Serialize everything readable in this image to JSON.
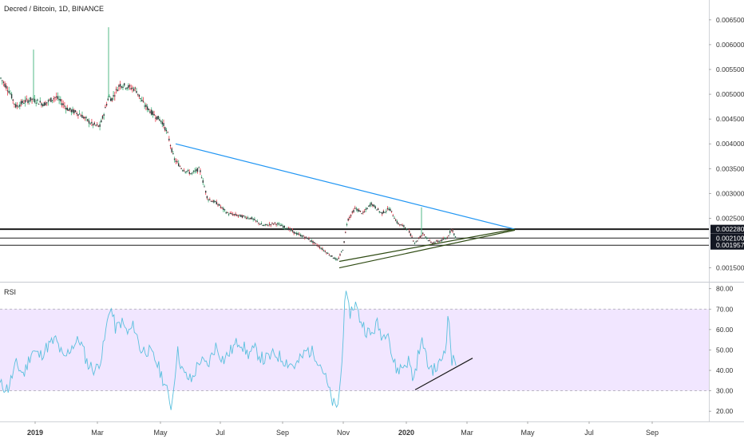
{
  "header": {
    "title": "Decred / Bitcoin, 1D, BINANCE"
  },
  "rsi_panel": {
    "label": "RSI"
  },
  "colors": {
    "candle_up": "#53b987",
    "candle_down": "#eb4d5c",
    "candle_body": "#2e3a3a",
    "trend_blue": "#2196f3",
    "trend_green": "#2e4a12",
    "rsi_line": "#5bc0de",
    "rsi_band": "#f1e6ff",
    "level_line": "#1b1b1b"
  },
  "chart_data": [
    {
      "type": "candlestick",
      "title": "Decred / Bitcoin, 1D, BINANCE",
      "x_ticks": [
        "2019",
        "Mar",
        "May",
        "Jul",
        "Sep",
        "Nov",
        "2020",
        "Mar",
        "May",
        "Jul",
        "Sep"
      ],
      "y_ticks": [
        "0.006500",
        "0.006000",
        "0.005500",
        "0.005000",
        "0.004500",
        "0.004000",
        "0.003500",
        "0.003000",
        "0.002500",
        "0.001500"
      ],
      "ylim": [
        0.00122,
        0.0069
      ],
      "price_levels": [
        {
          "value": 0.00228,
          "label": "0.002280"
        },
        {
          "value": 0.0021,
          "label": "0.002100"
        },
        {
          "value": 0.001957,
          "label": "0.001957"
        }
      ],
      "series_path": [
        [
          0,
          0.00535
        ],
        [
          12,
          0.00505
        ],
        [
          20,
          0.00475
        ],
        [
          30,
          0.00485
        ],
        [
          40,
          0.0049
        ],
        [
          55,
          0.0048
        ],
        [
          70,
          0.00495
        ],
        [
          85,
          0.0047
        ],
        [
          100,
          0.0046
        ],
        [
          115,
          0.0044
        ],
        [
          125,
          0.00435
        ],
        [
          130,
          0.0046
        ],
        [
          136,
          0.00495
        ],
        [
          140,
          0.0049
        ],
        [
          150,
          0.0052
        ],
        [
          160,
          0.00515
        ],
        [
          170,
          0.0051
        ],
        [
          180,
          0.0048
        ],
        [
          192,
          0.0046
        ],
        [
          203,
          0.00445
        ],
        [
          210,
          0.0042
        ],
        [
          218,
          0.0037
        ],
        [
          228,
          0.0035
        ],
        [
          240,
          0.0034
        ],
        [
          250,
          0.0035
        ],
        [
          260,
          0.0029
        ],
        [
          272,
          0.0028
        ],
        [
          285,
          0.0026
        ],
        [
          300,
          0.00255
        ],
        [
          315,
          0.0025
        ],
        [
          330,
          0.00235
        ],
        [
          345,
          0.0024
        ],
        [
          360,
          0.0023
        ],
        [
          370,
          0.0022
        ],
        [
          385,
          0.0021
        ],
        [
          398,
          0.00195
        ],
        [
          410,
          0.0018
        ],
        [
          423,
          0.00165
        ],
        [
          430,
          0.0019
        ],
        [
          435,
          0.00245
        ],
        [
          445,
          0.0027
        ],
        [
          455,
          0.0026
        ],
        [
          465,
          0.0028
        ],
        [
          478,
          0.0026
        ],
        [
          488,
          0.0027
        ],
        [
          498,
          0.0024
        ],
        [
          510,
          0.0023
        ],
        [
          520,
          0.002
        ],
        [
          530,
          0.0022
        ],
        [
          540,
          0.002
        ],
        [
          552,
          0.00205
        ],
        [
          560,
          0.0021
        ],
        [
          566,
          0.0023
        ],
        [
          572,
          0.00205
        ]
      ],
      "spikes": [
        {
          "x": 42,
          "high": 0.0059
        },
        {
          "x": 136,
          "high": 0.00635
        },
        {
          "x": 528,
          "high": 0.00272
        }
      ],
      "trendlines": [
        {
          "color": "trend_blue",
          "from": [
            220,
            0.004
          ],
          "to": [
            645,
            0.00228
          ]
        },
        {
          "color": "trend_green",
          "from": [
            425,
            0.00163
          ],
          "to": [
            645,
            0.00228
          ]
        },
        {
          "color": "trend_green",
          "from": [
            425,
            0.0015
          ],
          "to": [
            645,
            0.00226
          ]
        }
      ]
    },
    {
      "type": "line",
      "title": "RSI",
      "y_ticks": [
        "80.00",
        "70.00",
        "60.00",
        "50.00",
        "40.00",
        "30.00",
        "20.00"
      ],
      "ylim": [
        15,
        83
      ],
      "band": [
        30,
        70
      ],
      "series_path": [
        [
          0,
          33
        ],
        [
          10,
          31
        ],
        [
          20,
          43
        ],
        [
          30,
          38
        ],
        [
          40,
          50
        ],
        [
          50,
          47
        ],
        [
          60,
          52
        ],
        [
          70,
          55
        ],
        [
          80,
          45
        ],
        [
          90,
          52
        ],
        [
          100,
          55
        ],
        [
          110,
          43
        ],
        [
          120,
          40
        ],
        [
          128,
          48
        ],
        [
          133,
          60
        ],
        [
          138,
          72
        ],
        [
          145,
          60
        ],
        [
          152,
          64
        ],
        [
          160,
          58
        ],
        [
          168,
          62
        ],
        [
          176,
          50
        ],
        [
          185,
          50
        ],
        [
          195,
          45
        ],
        [
          205,
          35
        ],
        [
          215,
          22
        ],
        [
          222,
          50
        ],
        [
          230,
          38
        ],
        [
          240,
          35
        ],
        [
          250,
          45
        ],
        [
          260,
          42
        ],
        [
          270,
          52
        ],
        [
          280,
          45
        ],
        [
          290,
          50
        ],
        [
          300,
          55
        ],
        [
          310,
          48
        ],
        [
          320,
          50
        ],
        [
          330,
          45
        ],
        [
          345,
          48
        ],
        [
          360,
          44
        ],
        [
          370,
          42
        ],
        [
          385,
          50
        ],
        [
          395,
          48
        ],
        [
          405,
          40
        ],
        [
          415,
          26
        ],
        [
          422,
          20
        ],
        [
          428,
          40
        ],
        [
          432,
          78
        ],
        [
          438,
          68
        ],
        [
          445,
          73
        ],
        [
          450,
          66
        ],
        [
          458,
          60
        ],
        [
          465,
          57
        ],
        [
          472,
          63
        ],
        [
          480,
          56
        ],
        [
          486,
          62
        ],
        [
          490,
          48
        ],
        [
          497,
          40
        ],
        [
          505,
          42
        ],
        [
          512,
          45
        ],
        [
          518,
          35
        ],
        [
          524,
          48
        ],
        [
          530,
          55
        ],
        [
          535,
          43
        ],
        [
          545,
          40
        ],
        [
          552,
          44
        ],
        [
          558,
          52
        ],
        [
          562,
          68
        ],
        [
          566,
          44
        ],
        [
          572,
          45
        ]
      ],
      "trendlines": [
        {
          "color": "level_line",
          "from": [
            520,
            30.5
          ],
          "to": [
            592,
            46
          ]
        }
      ]
    }
  ]
}
